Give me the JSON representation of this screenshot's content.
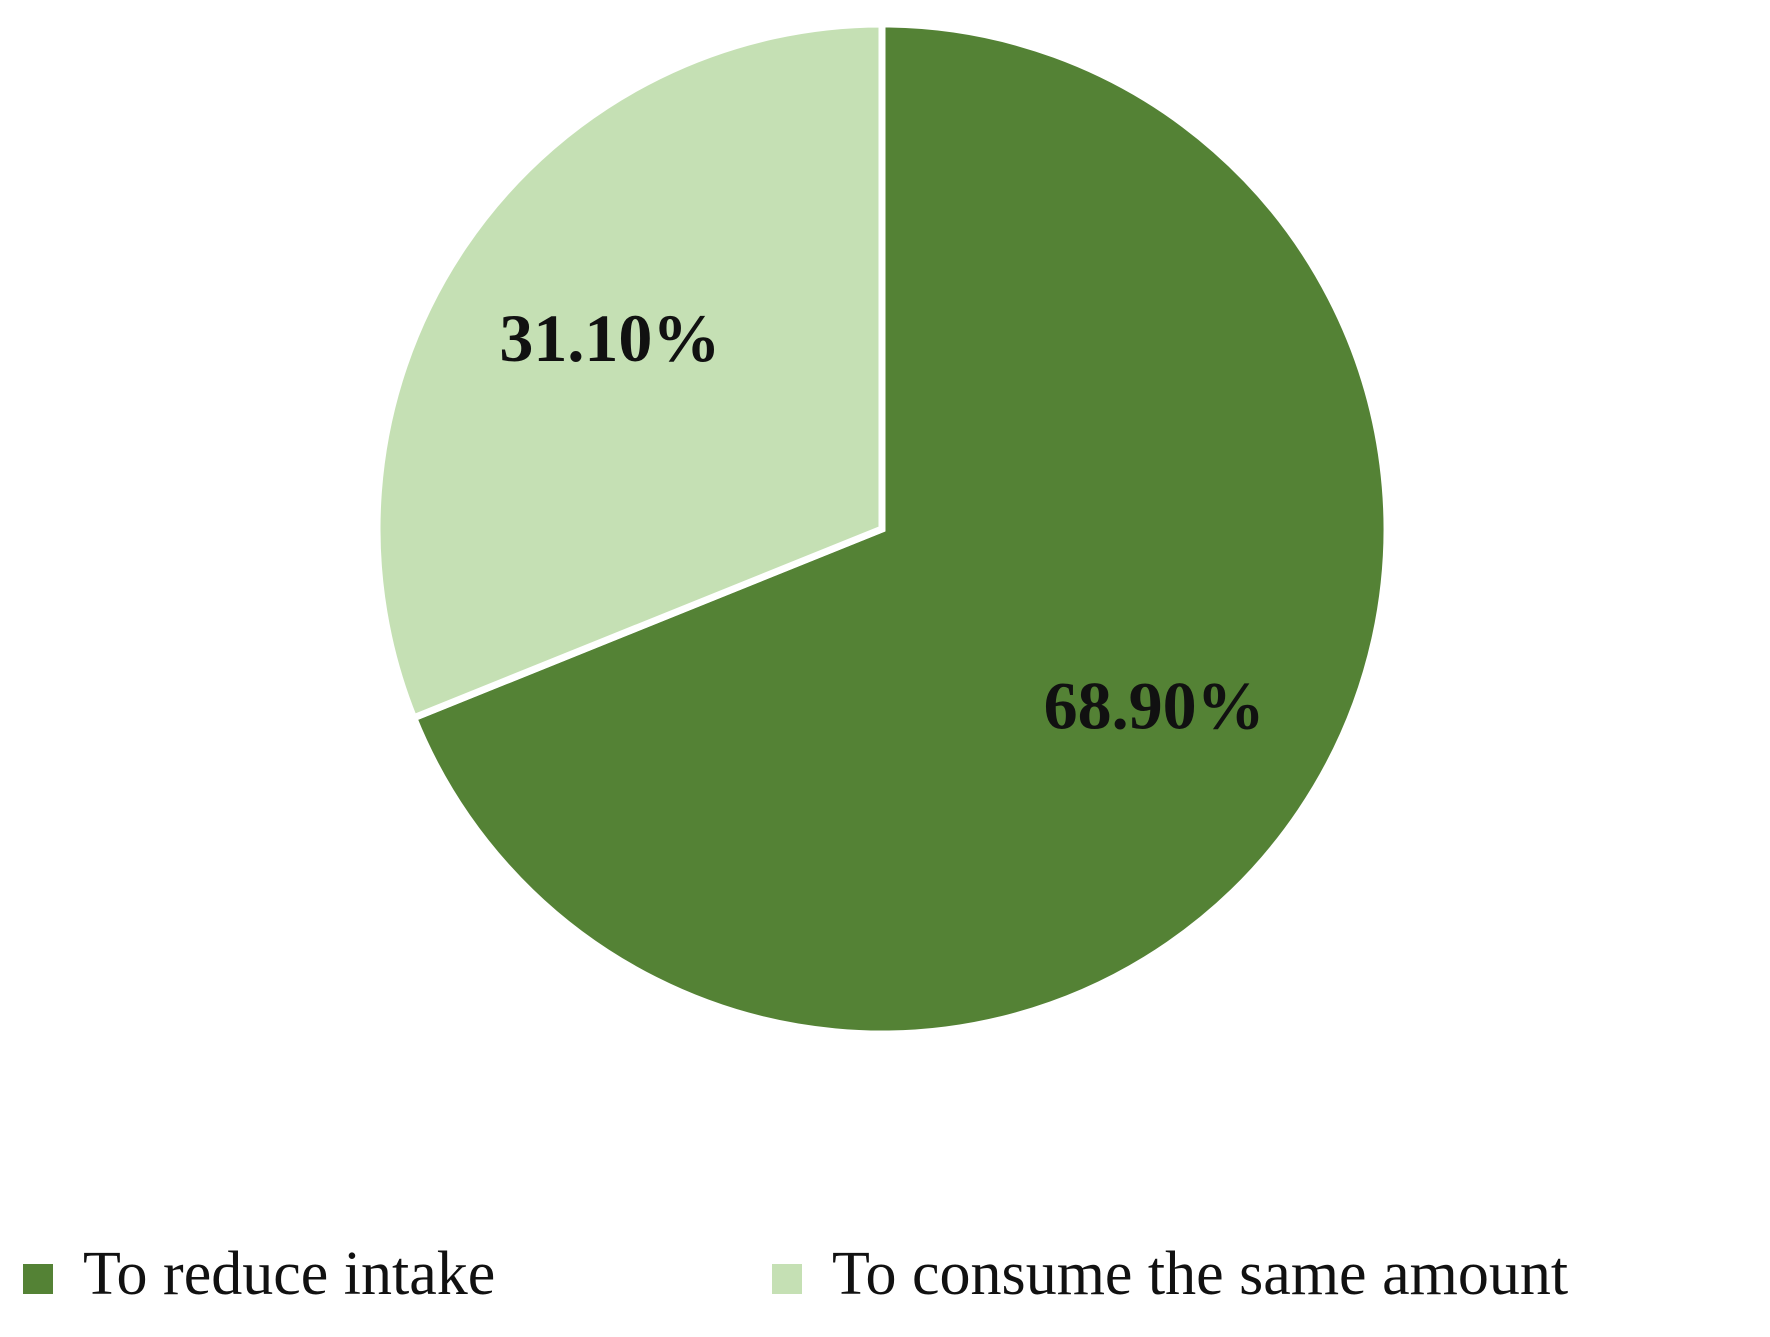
{
  "chart_data": {
    "type": "pie",
    "categories": [
      "To reduce intake",
      "To consume the same amount"
    ],
    "values": [
      68.9,
      31.1
    ],
    "value_labels": [
      "68.90%",
      "31.10%"
    ],
    "colors": [
      "#548235",
      "#c5e0b4"
    ],
    "legend": "bottom"
  }
}
